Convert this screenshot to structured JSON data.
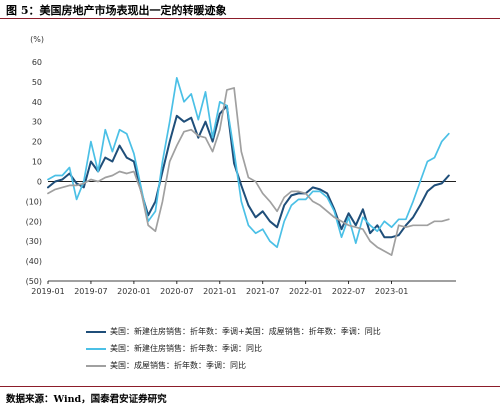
{
  "header": {
    "title": "图 5：美国房地产市场表现出一定的转暖迹象"
  },
  "footer": {
    "source": "数据来源：Wind，国泰君安证券研究"
  },
  "chart_data": {
    "type": "line",
    "ylabel": "(%)",
    "ylim": [
      -50,
      60
    ],
    "yticks": [
      "60",
      "50",
      "40",
      "30",
      "20",
      "10",
      "0",
      "(10)",
      "(20)",
      "(30)",
      "(40)",
      "(50)"
    ],
    "ytick_values": [
      60,
      50,
      40,
      30,
      20,
      10,
      0,
      -10,
      -20,
      -30,
      -40,
      -50
    ],
    "xlim": [
      0,
      57
    ],
    "xticks": [
      "2019-01",
      "2019-07",
      "2020-01",
      "2020-07",
      "2021-01",
      "2021-07",
      "2022-01",
      "2022-07",
      "2023-01"
    ],
    "xtick_positions": [
      0,
      6,
      12,
      18,
      24,
      30,
      36,
      42,
      48
    ],
    "grid": false,
    "legend_position": "bottom",
    "series": [
      {
        "name": "美国：新建住房销售：折年数：季调+美国：成屋销售：折年数：季调：同比",
        "color": "#1f4e79",
        "x": [
          0,
          1,
          2,
          3,
          4,
          5,
          6,
          7,
          8,
          9,
          10,
          11,
          12,
          13,
          14,
          15,
          16,
          17,
          18,
          19,
          20,
          21,
          22,
          23,
          24,
          25,
          26,
          27,
          28,
          29,
          30,
          31,
          32,
          33,
          34,
          35,
          36,
          37,
          38,
          39,
          40,
          41,
          42,
          43,
          44,
          45,
          46,
          47,
          48,
          49,
          50,
          51,
          52,
          53,
          54,
          55,
          56
        ],
        "values": [
          -3,
          0,
          1,
          4,
          -1,
          -3,
          10,
          5,
          12,
          10,
          18,
          12,
          10,
          -5,
          -17,
          -10,
          5,
          20,
          33,
          30,
          32,
          22,
          30,
          20,
          34,
          38,
          9,
          -2,
          -12,
          -18,
          -15,
          -20,
          -23,
          -12,
          -7,
          -6,
          -6,
          -3,
          -4,
          -6,
          -14,
          -24,
          -16,
          -22,
          -14,
          -26,
          -22,
          -28,
          -28,
          -27,
          -22,
          -18,
          -12,
          -5,
          -2,
          -1,
          3
        ]
      },
      {
        "name": "美国：新建住房销售：折年数：季调：同比",
        "color": "#4bc0e6",
        "x": [
          0,
          1,
          2,
          3,
          4,
          5,
          6,
          7,
          8,
          9,
          10,
          11,
          12,
          13,
          14,
          15,
          16,
          17,
          18,
          19,
          20,
          21,
          22,
          23,
          24,
          25,
          26,
          27,
          28,
          29,
          30,
          31,
          32,
          33,
          34,
          35,
          36,
          37,
          38,
          39,
          40,
          41,
          42,
          43,
          44,
          45,
          46,
          47,
          48,
          49,
          50,
          51,
          52,
          53,
          54,
          55,
          56
        ],
        "values": [
          1,
          3,
          3,
          7,
          -9,
          0,
          20,
          5,
          26,
          15,
          26,
          24,
          14,
          -3,
          -20,
          -15,
          10,
          30,
          52,
          40,
          44,
          31,
          45,
          22,
          40,
          38,
          15,
          -10,
          -22,
          -26,
          -24,
          -30,
          -33,
          -20,
          -12,
          -9,
          -9,
          -5,
          -5,
          -8,
          -15,
          -28,
          -18,
          -31,
          -18,
          -22,
          -25,
          -20,
          -23,
          -19,
          -19,
          -10,
          0,
          10,
          12,
          20,
          24
        ]
      },
      {
        "name": "美国：成屋销售：折年数：季调：同比",
        "color": "#a0a0a0",
        "x": [
          0,
          1,
          2,
          3,
          4,
          5,
          6,
          7,
          8,
          9,
          10,
          11,
          12,
          13,
          14,
          15,
          16,
          17,
          18,
          19,
          20,
          21,
          22,
          23,
          24,
          25,
          26,
          27,
          28,
          29,
          30,
          31,
          32,
          33,
          34,
          35,
          36,
          37,
          38,
          39,
          40,
          41,
          42,
          43,
          44,
          45,
          46,
          47,
          48,
          49,
          50,
          51,
          52,
          53,
          54,
          55,
          56
        ],
        "values": [
          -6,
          -4,
          -3,
          -2,
          -2,
          -1,
          1,
          0,
          2,
          3,
          5,
          4,
          5,
          -5,
          -22,
          -25,
          -10,
          10,
          18,
          25,
          26,
          23,
          22,
          15,
          26,
          46,
          47,
          15,
          2,
          0,
          -6,
          -10,
          -15,
          -8,
          -5,
          -5,
          -6,
          -10,
          -12,
          -15,
          -18,
          -20,
          -22,
          -23,
          -24,
          -30,
          -33,
          -35,
          -37,
          -22,
          -23,
          -22,
          -22,
          -22,
          -20,
          -20,
          -19
        ]
      }
    ]
  }
}
